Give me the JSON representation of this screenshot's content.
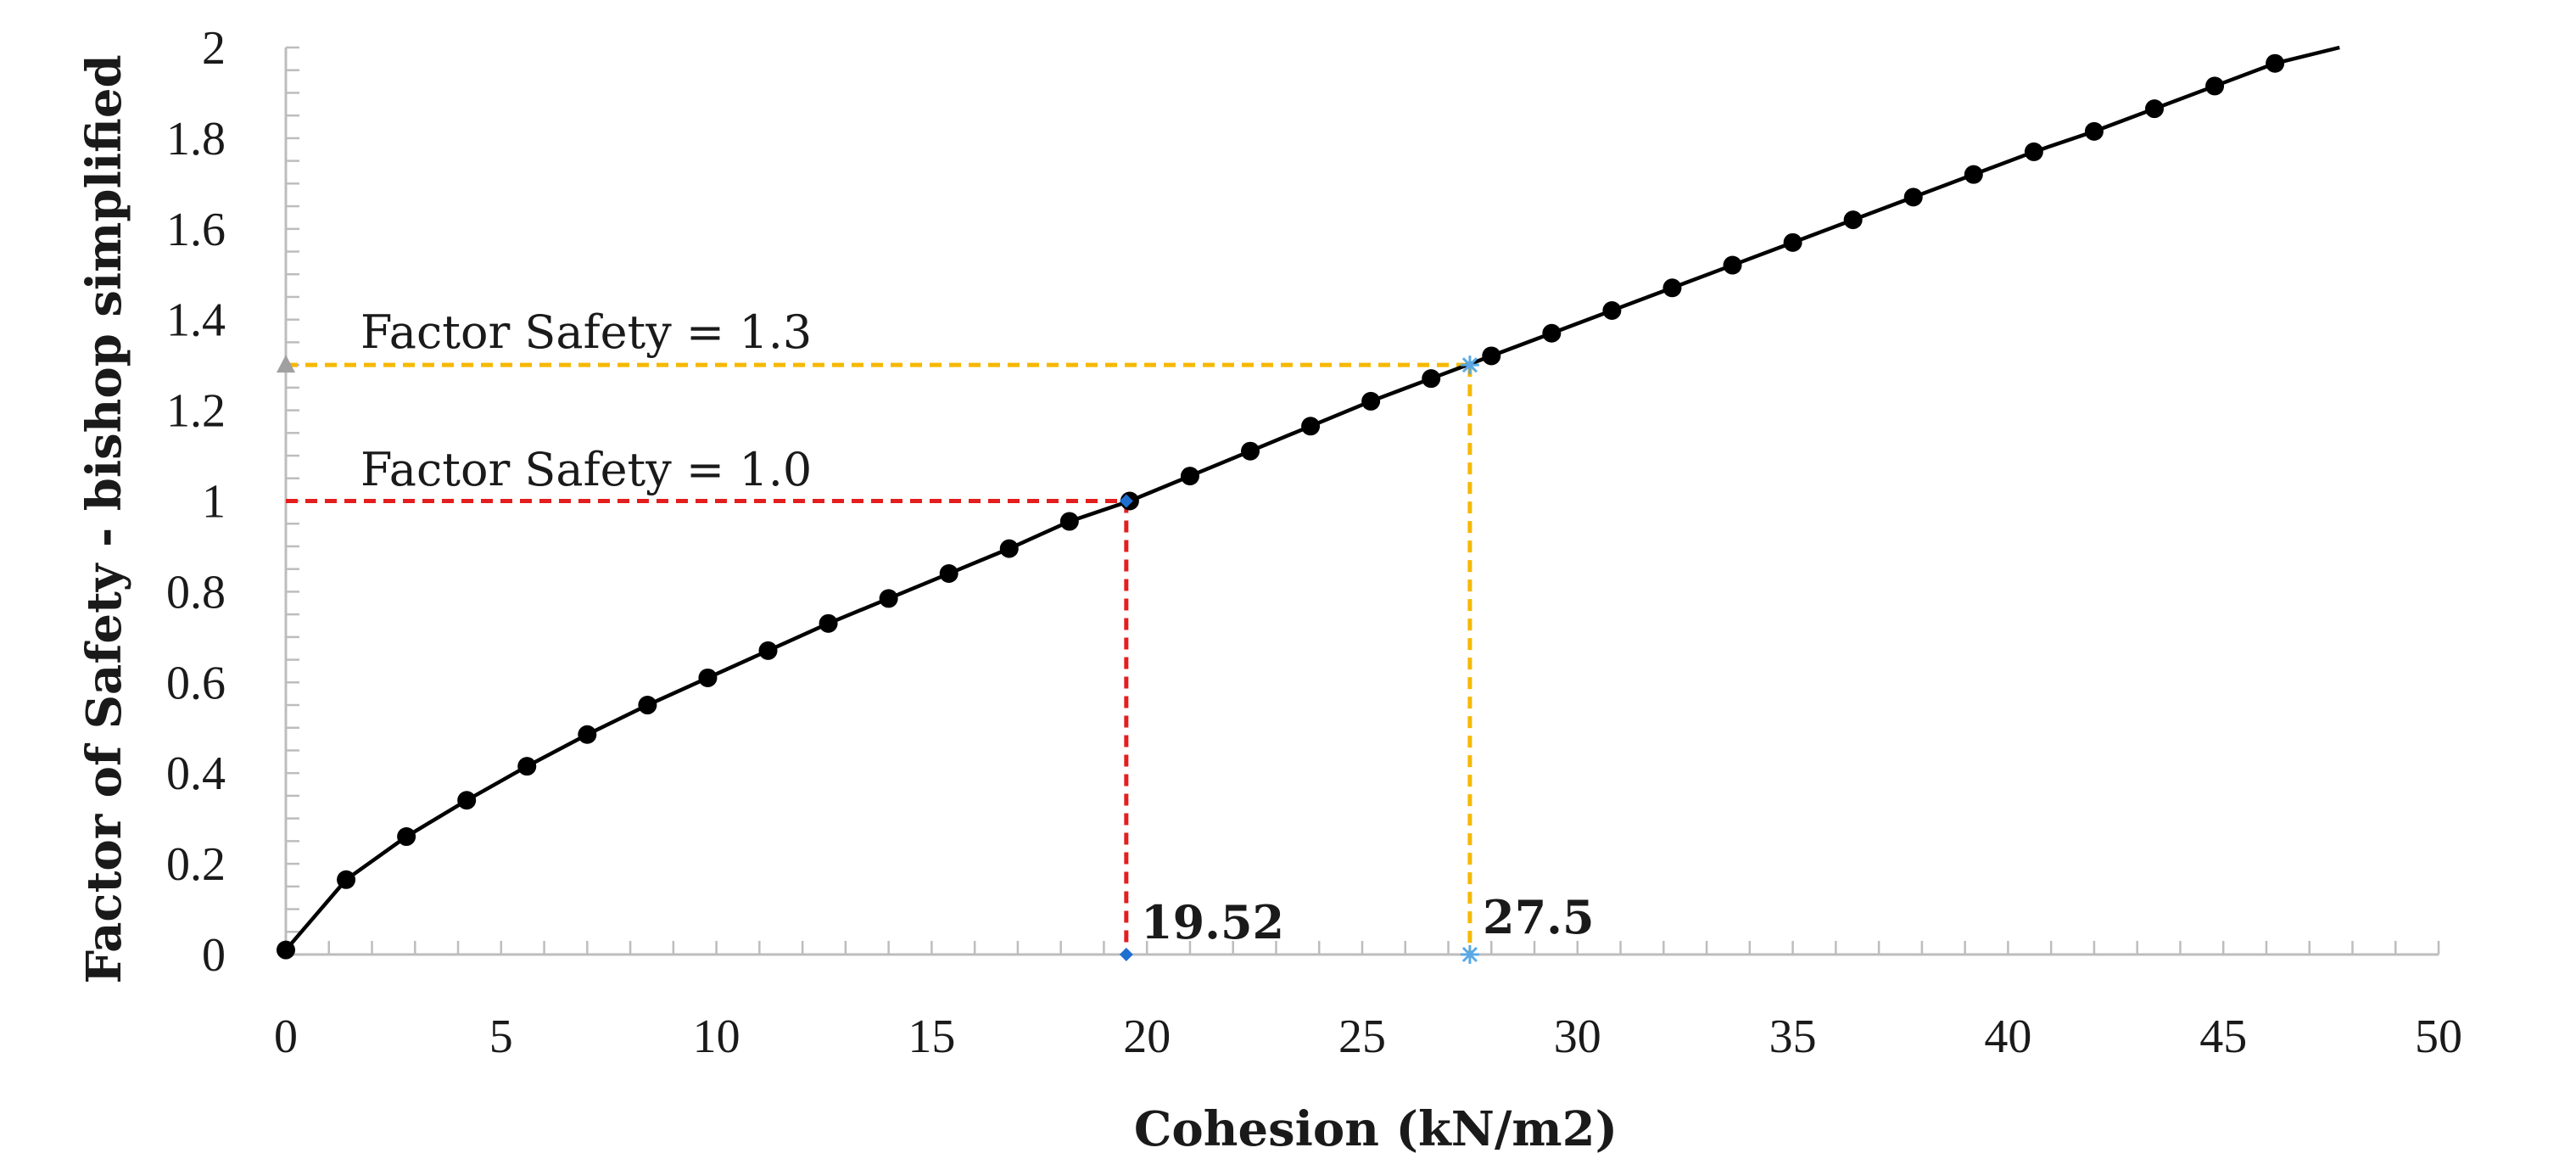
{
  "chart_data": {
    "type": "line",
    "title": "",
    "xlabel": "Cohesion (kN/m2)",
    "ylabel": "Factor of Safety - bishop simplified",
    "xlim": [
      0,
      50
    ],
    "ylim": [
      0,
      2
    ],
    "x_ticks": [
      0,
      5,
      10,
      15,
      20,
      25,
      30,
      35,
      40,
      45,
      50
    ],
    "x_tick_labels": [
      "0",
      "5",
      "10",
      "15",
      "20",
      "25",
      "30",
      "35",
      "40",
      "45",
      "50"
    ],
    "y_ticks": [
      0,
      0.2,
      0.4,
      0.6,
      0.8,
      1,
      1.2,
      1.4,
      1.6,
      1.8,
      2
    ],
    "y_tick_labels": [
      "0",
      "0.2",
      "0.4",
      "0.6",
      "0.8",
      "1",
      "1.2",
      "1.4",
      "1.6",
      "1.8",
      "2"
    ],
    "x_minor_step": 1,
    "y_minor_step": 0.05,
    "grid": false,
    "series": [
      {
        "name": "Factor of Safety - bishop simplified",
        "color": "#000000",
        "marker": "circle",
        "x": [
          0,
          1.4,
          2.8,
          4.2,
          5.6,
          7.0,
          8.4,
          9.8,
          11.2,
          12.6,
          14.0,
          15.4,
          16.8,
          18.2,
          19.6,
          21.0,
          22.4,
          23.8,
          25.2,
          26.6,
          28.0,
          29.4,
          30.8,
          32.2,
          33.6,
          35.0,
          36.4,
          37.8,
          39.2,
          40.6,
          42.0,
          43.4,
          44.8,
          46.2
        ],
        "y": [
          0.01,
          0.165,
          0.26,
          0.34,
          0.415,
          0.485,
          0.55,
          0.61,
          0.67,
          0.73,
          0.785,
          0.84,
          0.895,
          0.955,
          1.0,
          1.055,
          1.11,
          1.165,
          1.22,
          1.27,
          1.32,
          1.37,
          1.42,
          1.47,
          1.52,
          1.57,
          1.62,
          1.67,
          1.72,
          1.77,
          1.815,
          1.865,
          1.915,
          1.965
        ],
        "line_end": [
          47.7,
          2.0
        ]
      }
    ],
    "annotations": [
      {
        "label": "Factor Safety = 1.0",
        "fos": 1.0,
        "cohesion": 19.52,
        "value_label": "19.52",
        "color": "#e41e1e",
        "marker_color": "#1f6fd1",
        "marker": "diamond"
      },
      {
        "label": "Factor Safety = 1.3",
        "fos": 1.3,
        "cohesion": 27.5,
        "value_label": "27.5",
        "color": "#f5b800",
        "marker_color": "#5aa9e6",
        "marker": "star",
        "y_axis_marker": "triangle",
        "y_axis_marker_color": "#a0a0a0"
      }
    ]
  }
}
